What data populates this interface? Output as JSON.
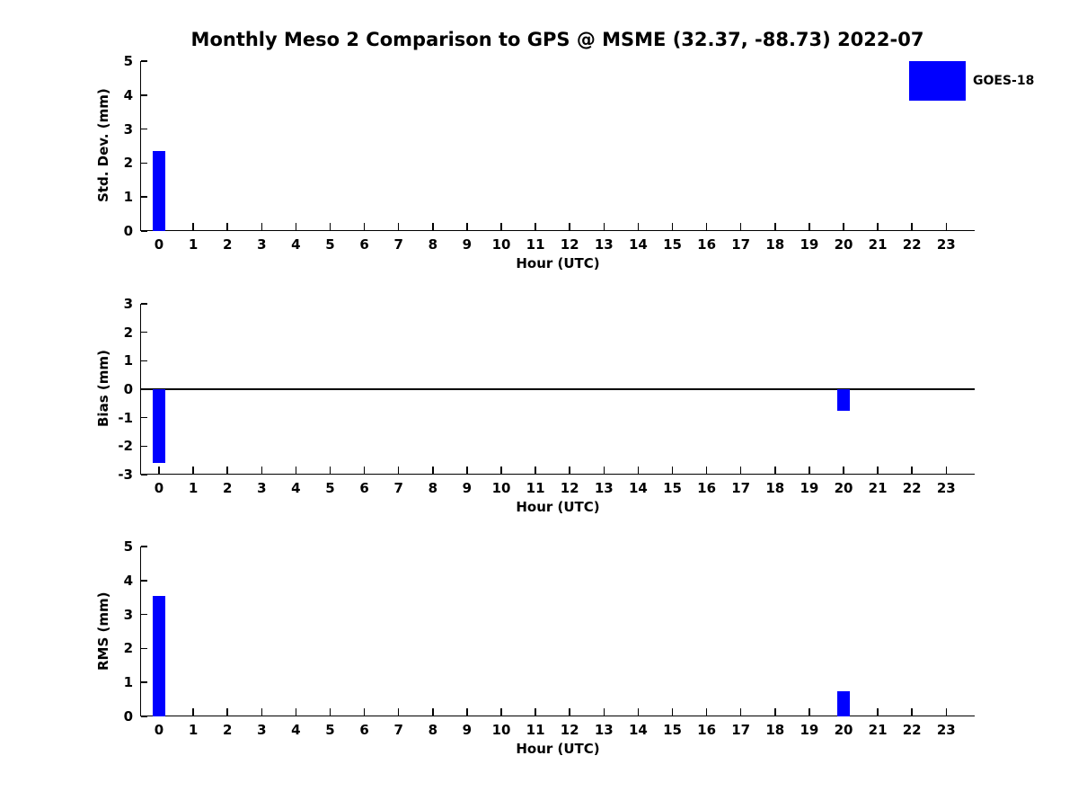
{
  "title": "Monthly Meso 2 Comparison to GPS @ MSME (32.37, -88.73) 2022-07",
  "colors": {
    "bar": "#0000ff",
    "axis": "#000000",
    "background": "#ffffff",
    "text": "#000000"
  },
  "chart_data": [
    {
      "type": "bar",
      "ylabel": "Std. Dev. (mm)",
      "xlabel": "Hour (UTC)",
      "categories": [
        "0",
        "1",
        "2",
        "3",
        "4",
        "5",
        "6",
        "7",
        "8",
        "9",
        "10",
        "11",
        "12",
        "13",
        "14",
        "15",
        "16",
        "17",
        "18",
        "19",
        "20",
        "21",
        "22",
        "23"
      ],
      "series": [
        {
          "name": "GOES-18",
          "color": "#0000ff",
          "values": [
            2.35,
            0,
            0,
            0,
            0,
            0,
            0,
            0,
            0,
            0,
            0,
            0,
            0,
            0,
            0,
            0,
            0,
            0,
            0,
            0,
            0,
            0,
            0,
            0
          ]
        }
      ],
      "ylim": [
        0,
        5
      ],
      "yticks": [
        0,
        1,
        2,
        3,
        4,
        5
      ],
      "grid": false,
      "zero_line": false,
      "legend": {
        "label": "GOES-18",
        "position": "top-right"
      }
    },
    {
      "type": "bar",
      "ylabel": "Bias (mm)",
      "xlabel": "Hour (UTC)",
      "categories": [
        "0",
        "1",
        "2",
        "3",
        "4",
        "5",
        "6",
        "7",
        "8",
        "9",
        "10",
        "11",
        "12",
        "13",
        "14",
        "15",
        "16",
        "17",
        "18",
        "19",
        "20",
        "21",
        "22",
        "23"
      ],
      "series": [
        {
          "name": "GOES-18",
          "color": "#0000ff",
          "values": [
            -2.6,
            0,
            0,
            0,
            0,
            0,
            0,
            0,
            0,
            0,
            0,
            0,
            0,
            0,
            0,
            0,
            0,
            0,
            0,
            0,
            -0.75,
            0,
            0,
            0
          ]
        }
      ],
      "ylim": [
        -3,
        3
      ],
      "yticks": [
        -3,
        -2,
        -1,
        0,
        1,
        2,
        3
      ],
      "grid": false,
      "zero_line": true
    },
    {
      "type": "bar",
      "ylabel": "RMS (mm)",
      "xlabel": "Hour (UTC)",
      "categories": [
        "0",
        "1",
        "2",
        "3",
        "4",
        "5",
        "6",
        "7",
        "8",
        "9",
        "10",
        "11",
        "12",
        "13",
        "14",
        "15",
        "16",
        "17",
        "18",
        "19",
        "20",
        "21",
        "22",
        "23"
      ],
      "series": [
        {
          "name": "GOES-18",
          "color": "#0000ff",
          "values": [
            3.55,
            0,
            0,
            0,
            0,
            0,
            0,
            0,
            0,
            0,
            0,
            0,
            0,
            0,
            0,
            0,
            0,
            0,
            0,
            0,
            0.75,
            0,
            0,
            0
          ]
        }
      ],
      "ylim": [
        0,
        5
      ],
      "yticks": [
        0,
        1,
        2,
        3,
        4,
        5
      ],
      "grid": false,
      "zero_line": false
    }
  ]
}
